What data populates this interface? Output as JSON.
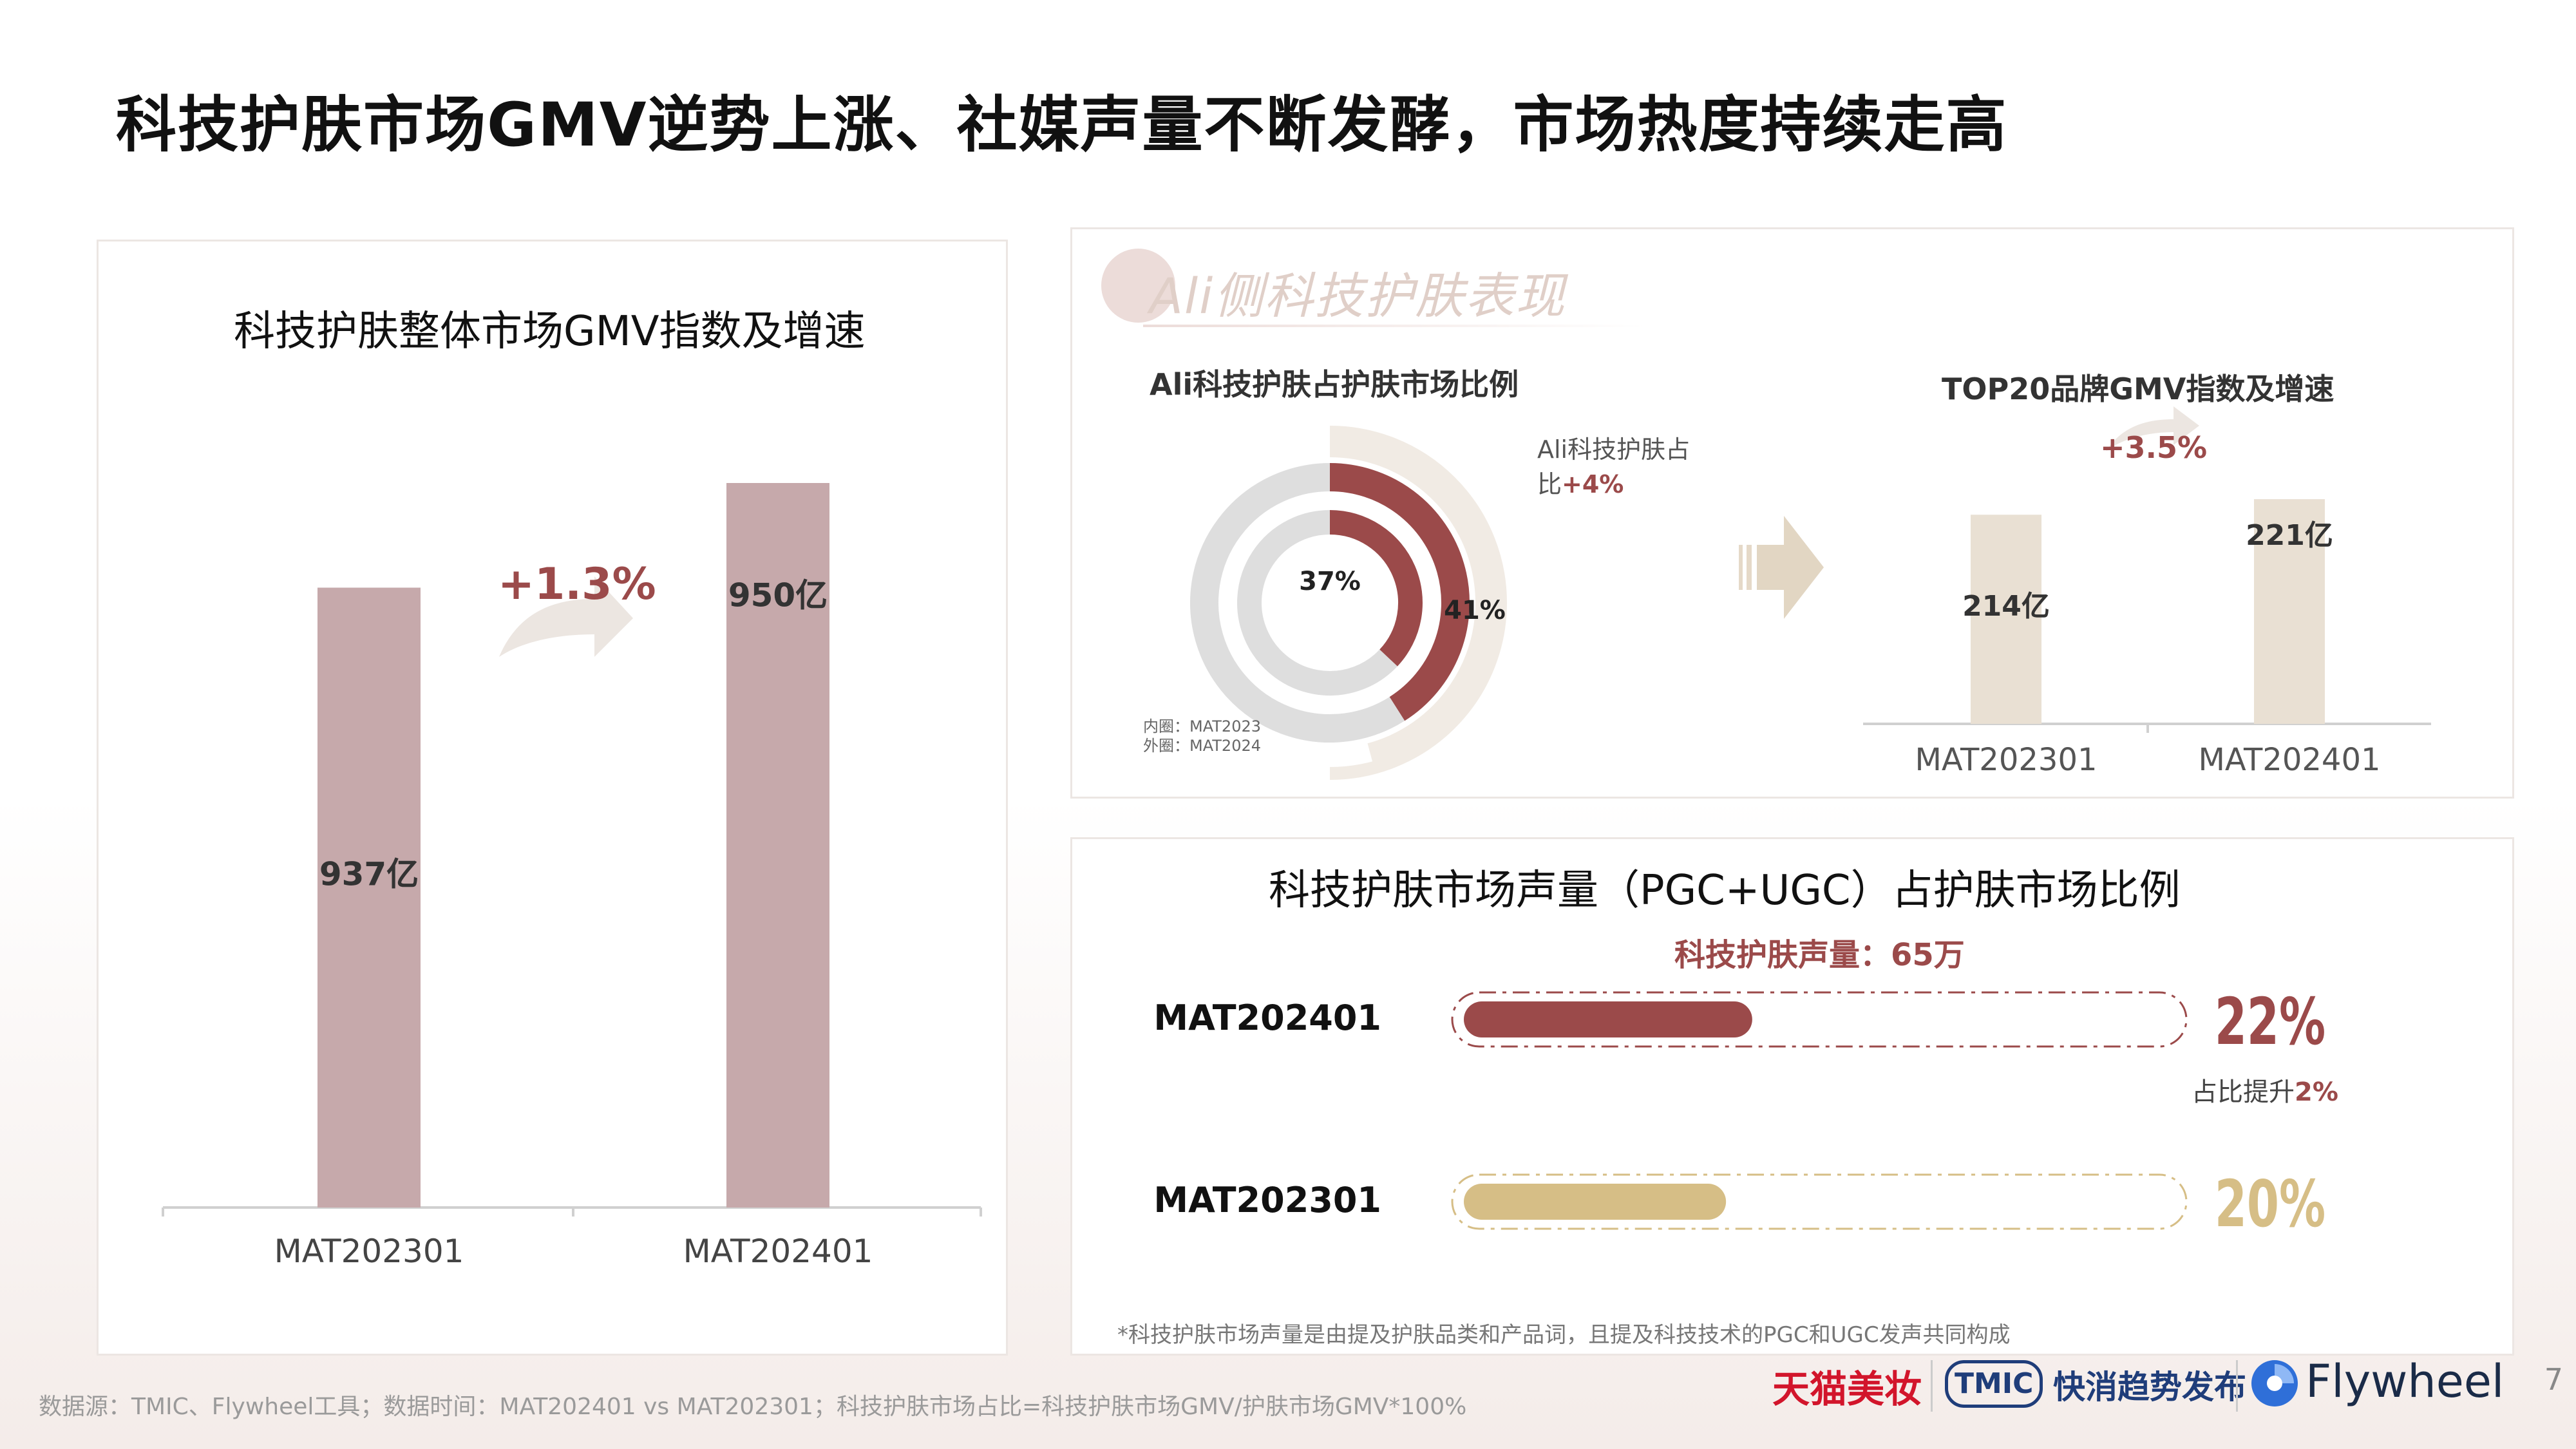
{
  "title": "科技护肤市场GMV逆势上涨、社媒声量不断发酵，市场热度持续走高",
  "footer": "数据源：TMIC、Flywheel工具；数据时间：MAT202401 vs MAT202301；科技护肤市场占比=科技护肤市场GMV/护肤市场GMV*100%",
  "page_number": "7",
  "logos": {
    "tmall": "天猫美妆",
    "tmic": "TMIC",
    "tmic_text": "快消趋势发布",
    "flywheel": "Flywheel"
  },
  "colors": {
    "rose": "#c6a9ab",
    "wine": "#9b4a4a",
    "beige": "#e9e0d3",
    "gold": "#d6be86",
    "gray": "#dcdcdc"
  },
  "right_top": {
    "badge": "Ali侧科技护肤表现",
    "donut_note_inner": "内圈：MAT2023",
    "donut_note_outer": "外圈：MAT2024",
    "donut_annot_line1": "Ali科技护肤占",
    "donut_annot_line2a": "比",
    "donut_annot_line2b": "+4%"
  },
  "right_bottom": {
    "voice_label": "科技护肤声量：65万",
    "lift_a": "占比提升",
    "lift_b": "2%",
    "note": "*科技护肤市场声量是由提及护肤品类和产品词，且提及科技技术的PGC和UGC发声共同构成"
  },
  "chart_data": [
    {
      "type": "bar",
      "title": "科技护肤整体市场GMV指数及增速",
      "categories": [
        "MAT202301",
        "MAT202401"
      ],
      "values": [
        937,
        950
      ],
      "data_labels": [
        "937亿",
        "950亿"
      ],
      "growth_label": "+1.3%",
      "ylim": [
        0,
        1000
      ]
    },
    {
      "type": "pie",
      "title": "Ali科技护肤占护肤市场比例",
      "series": [
        {
          "name": "内圈：MAT2023",
          "values": [
            37,
            63
          ],
          "label": "37%"
        },
        {
          "name": "外圈：MAT2024",
          "values": [
            41,
            59
          ],
          "label": "41%"
        }
      ]
    },
    {
      "type": "bar",
      "title": "TOP20品牌GMV指数及增速",
      "categories": [
        "MAT202301",
        "MAT202401"
      ],
      "values": [
        214,
        221
      ],
      "data_labels": [
        "214亿",
        "221亿"
      ],
      "growth_label": "+3.5%",
      "ylim": [
        0,
        260
      ]
    },
    {
      "type": "bar",
      "title": "科技护肤市场声量（PGC+UGC）占护肤市场比例",
      "categories": [
        "MAT202401",
        "MAT202301"
      ],
      "values": [
        22,
        20
      ],
      "data_labels": [
        "22%",
        "20%"
      ]
    }
  ]
}
